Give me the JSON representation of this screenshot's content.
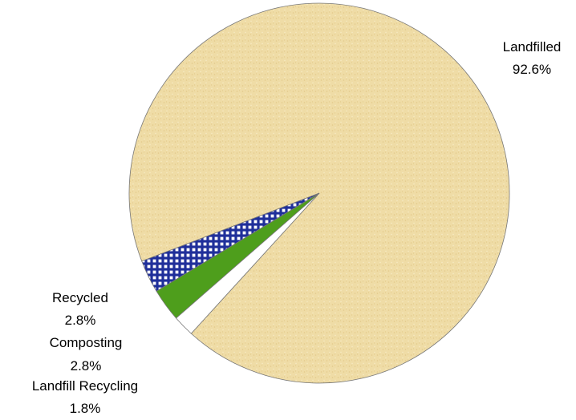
{
  "chart_data": {
    "type": "pie",
    "title": "",
    "slices": [
      {
        "label": "Landfilled",
        "value": 92.6,
        "value_label": "92.6%",
        "color": "#efdca6",
        "pattern": "speckled"
      },
      {
        "label": "Recycled",
        "value": 2.8,
        "value_label": "2.8%",
        "color": "#1f2f9a",
        "pattern": "crosshatch"
      },
      {
        "label": "Composting",
        "value": 2.8,
        "value_label": "2.8%",
        "color": "#4e9e1c",
        "pattern": "solid"
      },
      {
        "label": "Landfill Recycling",
        "value": 1.8,
        "value_label": "1.8%",
        "color": "#ffffff",
        "pattern": "solid"
      }
    ],
    "legend": "none",
    "labels": "outside"
  }
}
